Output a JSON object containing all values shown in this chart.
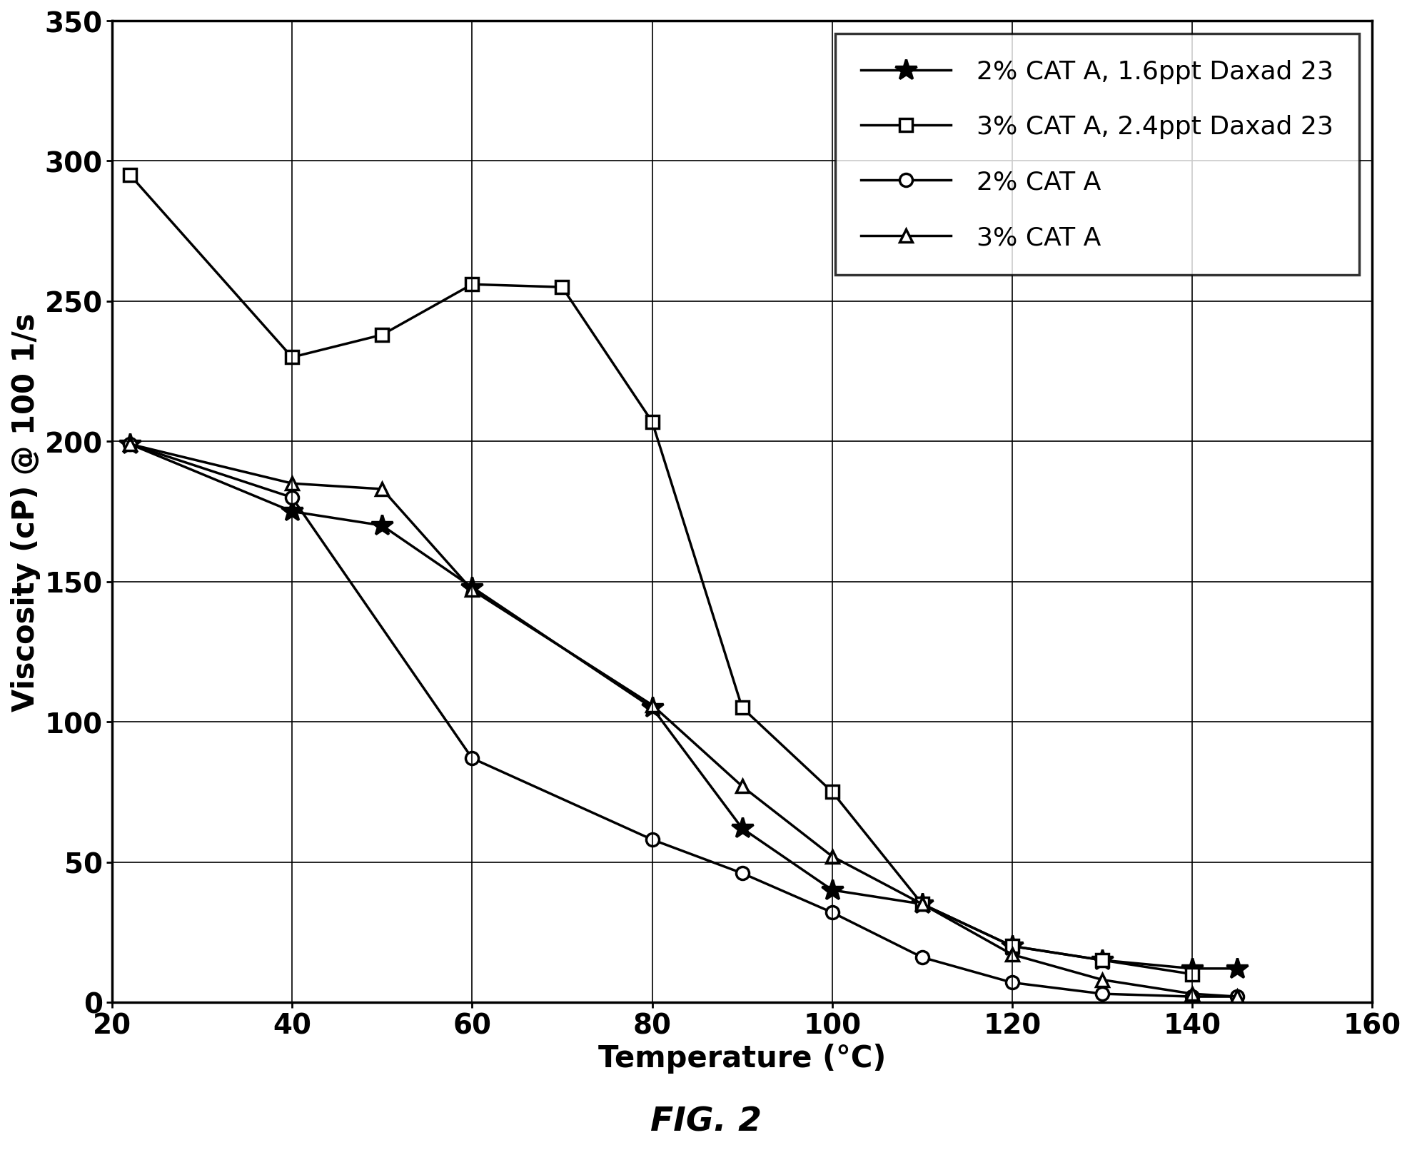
{
  "title": "FIG. 2",
  "xlabel": "Temperature (°C)",
  "ylabel": "Viscosity (cP) @ 100 1/s",
  "xlim": [
    20,
    160
  ],
  "ylim": [
    0,
    350
  ],
  "xticks": [
    20,
    40,
    60,
    80,
    100,
    120,
    140,
    160
  ],
  "yticks": [
    0,
    50,
    100,
    150,
    200,
    250,
    300,
    350
  ],
  "series": [
    {
      "label": "2% CAT A, 1.6ppt Daxad 23",
      "x": [
        22,
        40,
        50,
        60,
        80,
        90,
        100,
        110,
        120,
        130,
        140,
        145
      ],
      "y": [
        199,
        175,
        170,
        148,
        105,
        62,
        40,
        35,
        20,
        15,
        12,
        12
      ],
      "marker": "*",
      "markersize": 22,
      "markerfacecolor": "black",
      "linewidth": 2.5,
      "color": "#000000"
    },
    {
      "label": "3% CAT A, 2.4ppt Daxad 23",
      "x": [
        22,
        40,
        50,
        60,
        70,
        80,
        90,
        100,
        110,
        120,
        130,
        140
      ],
      "y": [
        295,
        230,
        238,
        256,
        255,
        207,
        105,
        75,
        35,
        20,
        15,
        10
      ],
      "marker": "s",
      "markersize": 13,
      "markerfacecolor": "white",
      "linewidth": 2.5,
      "color": "#000000"
    },
    {
      "label": "2% CAT A",
      "x": [
        22,
        40,
        60,
        80,
        90,
        100,
        110,
        120,
        130,
        140,
        145
      ],
      "y": [
        199,
        180,
        87,
        58,
        46,
        32,
        16,
        7,
        3,
        2,
        2
      ],
      "marker": "o",
      "markersize": 13,
      "markerfacecolor": "white",
      "linewidth": 2.5,
      "color": "#000000"
    },
    {
      "label": "3% CAT A",
      "x": [
        22,
        40,
        50,
        60,
        80,
        90,
        100,
        110,
        120,
        130,
        140,
        145
      ],
      "y": [
        199,
        185,
        183,
        147,
        106,
        77,
        52,
        35,
        17,
        8,
        3,
        2
      ],
      "marker": "^",
      "markersize": 13,
      "markerfacecolor": "white",
      "linewidth": 2.5,
      "color": "#000000"
    }
  ],
  "legend_loc": "upper right",
  "legend_fontsize": 26,
  "axis_label_fontsize": 30,
  "tick_fontsize": 28,
  "title_fontsize": 34,
  "background_color": "#ffffff",
  "grid": true,
  "figwidth": 19.78,
  "figheight": 16.33,
  "dpi": 100
}
